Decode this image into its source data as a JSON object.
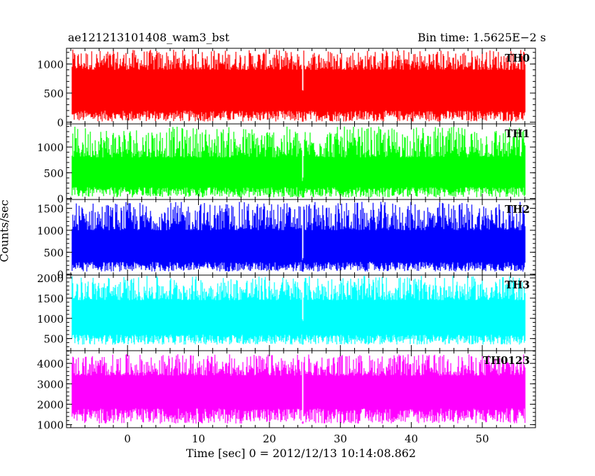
{
  "header": {
    "title": "ae121213101408_wam3_bst",
    "bin_time": "Bin time: 1.5625E−2 s"
  },
  "axes": {
    "xlabel": "Time [sec] 0 = 2012/12/13 10:14:08.862",
    "ylabel": "Counts/sec"
  },
  "chart_data": {
    "type": "line",
    "xlim": [
      -8.6,
      57.5
    ],
    "xticks": [
      0,
      10,
      20,
      30,
      40,
      50
    ],
    "grid": false,
    "dropout_time": 24.7,
    "panels": [
      {
        "name": "TH0",
        "color": "#ff0000",
        "ylim": [
          -30,
          1270
        ],
        "yticks": [
          0,
          500,
          1000
        ],
        "x_range": [
          -7.8,
          56.0
        ],
        "baseline": 580,
        "low_extent": [
          10,
          200
        ],
        "high_extent": [
          900,
          1250
        ],
        "dip": 480
      },
      {
        "name": "TH1",
        "color": "#00ff00",
        "ylim": [
          -20,
          1450
        ],
        "yticks": [
          0,
          500,
          1000
        ],
        "x_range": [
          -7.8,
          56.0
        ],
        "baseline": 560,
        "low_extent": [
          20,
          220
        ],
        "high_extent": [
          800,
          1400
        ],
        "dip": 330
      },
      {
        "name": "TH2",
        "color": "#0000ff",
        "ylim": [
          -20,
          1700
        ],
        "yticks": [
          0,
          500,
          1000,
          1500
        ],
        "x_range": [
          -7.8,
          56.0
        ],
        "baseline": 620,
        "low_extent": [
          60,
          280
        ],
        "high_extent": [
          1000,
          1650
        ],
        "dip": 300
      },
      {
        "name": "TH3",
        "color": "#00ffff",
        "ylim": [
          200,
          2070
        ],
        "yticks": [
          500,
          1000,
          1500,
          2000
        ],
        "x_range": [
          -7.8,
          56.0
        ],
        "baseline": 1000,
        "low_extent": [
          350,
          600
        ],
        "high_extent": [
          1450,
          2050
        ],
        "dip": 900
      },
      {
        "name": "TH0123",
        "color": "#ff00ff",
        "ylim": [
          850,
          4620
        ],
        "yticks": [
          1000,
          2000,
          3000,
          4000
        ],
        "x_range": [
          -7.8,
          56.0
        ],
        "baseline": 2550,
        "low_extent": [
          1050,
          1800
        ],
        "high_extent": [
          3400,
          4450
        ],
        "dip": 1100
      }
    ]
  }
}
